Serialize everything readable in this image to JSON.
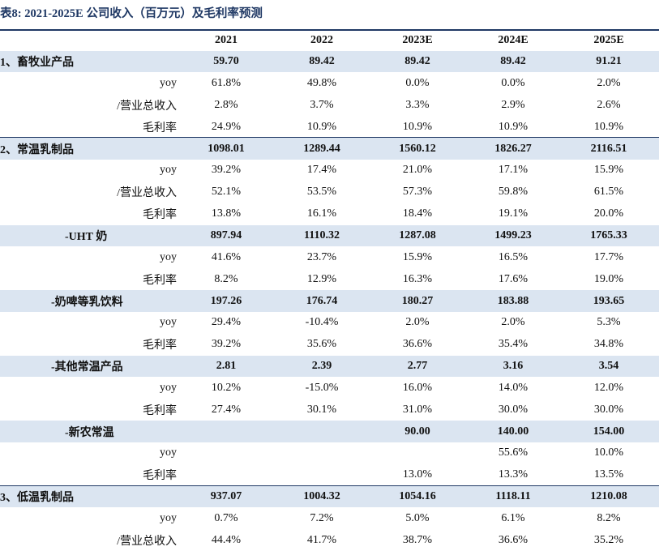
{
  "title": "表8:  2021-2025E  公司收入（百万元）及毛利率预测",
  "header": {
    "col0": "",
    "years": [
      "2021",
      "2022",
      "2023E",
      "2024E",
      "2025E"
    ]
  },
  "rows": [
    {
      "type": "band",
      "level": 0,
      "label": "1、畜牧业产品",
      "values": [
        "59.70",
        "89.42",
        "89.42",
        "89.42",
        "91.21"
      ]
    },
    {
      "type": "metric",
      "label": "yoy",
      "values": [
        "61.8%",
        "49.8%",
        "0.0%",
        "0.0%",
        "2.0%"
      ]
    },
    {
      "type": "metric",
      "label": "/营业总收入",
      "values": [
        "2.8%",
        "3.7%",
        "3.3%",
        "2.9%",
        "2.6%"
      ]
    },
    {
      "type": "metric",
      "label": "毛利率",
      "values": [
        "24.9%",
        "10.9%",
        "10.9%",
        "10.9%",
        "10.9%"
      ]
    },
    {
      "type": "band",
      "level": 0,
      "sep": true,
      "label": "2、常温乳制品",
      "values": [
        "1098.01",
        "1289.44",
        "1560.12",
        "1826.27",
        "2116.51"
      ]
    },
    {
      "type": "metric",
      "label": "yoy",
      "values": [
        "39.2%",
        "17.4%",
        "21.0%",
        "17.1%",
        "15.9%"
      ]
    },
    {
      "type": "metric",
      "label": "/营业总收入",
      "values": [
        "52.1%",
        "53.5%",
        "57.3%",
        "59.8%",
        "61.5%"
      ]
    },
    {
      "type": "metric",
      "label": "毛利率",
      "values": [
        "13.8%",
        "16.1%",
        "18.4%",
        "19.1%",
        "20.0%"
      ]
    },
    {
      "type": "band",
      "level": 1,
      "label": "-UHT 奶",
      "values": [
        "897.94",
        "1110.32",
        "1287.08",
        "1499.23",
        "1765.33"
      ]
    },
    {
      "type": "metric",
      "label": "yoy",
      "values": [
        "41.6%",
        "23.7%",
        "15.9%",
        "16.5%",
        "17.7%"
      ]
    },
    {
      "type": "metric",
      "label": "毛利率",
      "values": [
        "8.2%",
        "12.9%",
        "16.3%",
        "17.6%",
        "19.0%"
      ]
    },
    {
      "type": "band",
      "level": 2,
      "label": "-奶啤等乳饮料",
      "values": [
        "197.26",
        "176.74",
        "180.27",
        "183.88",
        "193.65"
      ]
    },
    {
      "type": "metric",
      "label": "yoy",
      "values": [
        "29.4%",
        "-10.4%",
        "2.0%",
        "2.0%",
        "5.3%"
      ]
    },
    {
      "type": "metric",
      "label": "毛利率",
      "values": [
        "39.2%",
        "35.6%",
        "36.6%",
        "35.4%",
        "34.8%"
      ]
    },
    {
      "type": "band",
      "level": 2,
      "label": "-其他常温产品",
      "values": [
        "2.81",
        "2.39",
        "2.77",
        "3.16",
        "3.54"
      ]
    },
    {
      "type": "metric",
      "label": "yoy",
      "values": [
        "10.2%",
        "-15.0%",
        "16.0%",
        "14.0%",
        "12.0%"
      ]
    },
    {
      "type": "metric",
      "label": "毛利率",
      "values": [
        "27.4%",
        "30.1%",
        "31.0%",
        "30.0%",
        "30.0%"
      ]
    },
    {
      "type": "band",
      "level": 1,
      "label": "-新农常温",
      "values": [
        "",
        "",
        "90.00",
        "140.00",
        "154.00"
      ]
    },
    {
      "type": "metric",
      "label": "yoy",
      "values": [
        "",
        "",
        "",
        "55.6%",
        "10.0%"
      ]
    },
    {
      "type": "metric",
      "label": "毛利率",
      "values": [
        "",
        "",
        "13.0%",
        "13.3%",
        "13.5%"
      ]
    },
    {
      "type": "band",
      "level": 0,
      "sep": true,
      "label": "3、低温乳制品",
      "values": [
        "937.07",
        "1004.32",
        "1054.16",
        "1118.11",
        "1210.08"
      ]
    },
    {
      "type": "metric",
      "label": "yoy",
      "values": [
        "0.7%",
        "7.2%",
        "5.0%",
        "6.1%",
        "8.2%"
      ]
    },
    {
      "type": "metric",
      "label": "/营业总收入",
      "values": [
        "44.4%",
        "41.7%",
        "38.7%",
        "36.6%",
        "35.2%"
      ]
    }
  ],
  "colors": {
    "band": "#dbe5f1",
    "rule": "#1f3864",
    "title": "#1f3864"
  }
}
